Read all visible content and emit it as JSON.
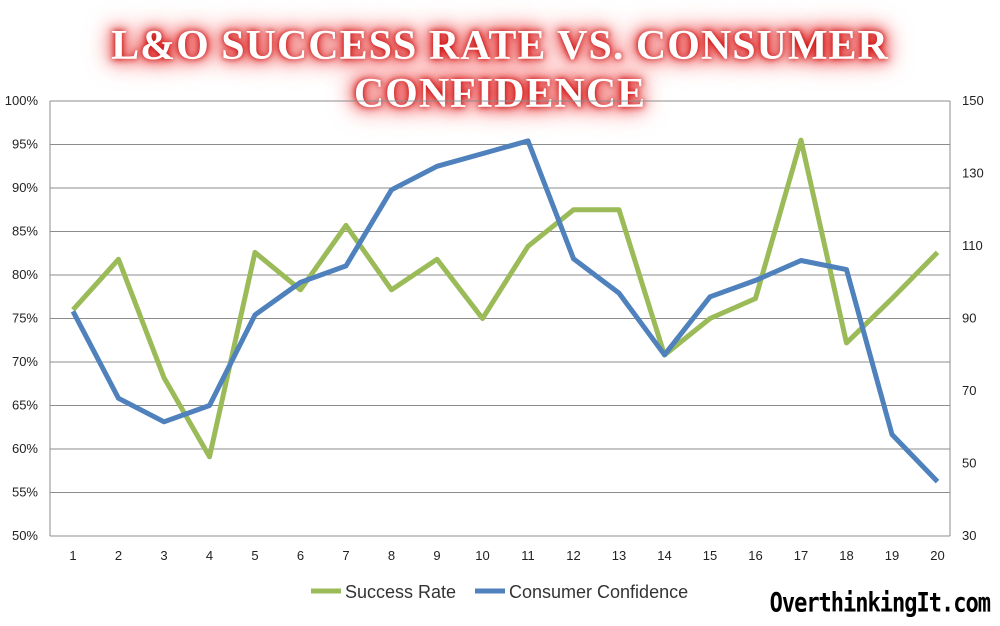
{
  "title": "L&O SUCCESS RATE VS. CONSUMER CONFIDENCE",
  "watermark": "OverthinkingIt.com",
  "colors": {
    "success_rate": "#9bbb59",
    "consumer_confidence": "#4f81bd",
    "grid": "#8c8c8c",
    "title_glow": "#e02020"
  },
  "chart_data": {
    "type": "line",
    "title": "L&O SUCCESS RATE VS. CONSUMER CONFIDENCE",
    "x": [
      1,
      2,
      3,
      4,
      5,
      6,
      7,
      8,
      9,
      10,
      11,
      12,
      13,
      14,
      15,
      16,
      17,
      18,
      19,
      20
    ],
    "x_tick_labels": [
      "1",
      "2",
      "3",
      "4",
      "5",
      "6",
      "7",
      "8",
      "9",
      "10",
      "11",
      "12",
      "13",
      "14",
      "15",
      "16",
      "17",
      "18",
      "19",
      "20"
    ],
    "y_left": {
      "ylim": [
        50,
        100
      ],
      "ticks": [
        50,
        55,
        60,
        65,
        70,
        75,
        80,
        85,
        90,
        95,
        100
      ],
      "tick_labels": [
        "50%",
        "55%",
        "60%",
        "65%",
        "70%",
        "75%",
        "80%",
        "85%",
        "90%",
        "95%",
        "100%"
      ]
    },
    "y_right": {
      "ylim": [
        30,
        150
      ],
      "ticks": [
        30,
        50,
        70,
        90,
        110,
        130,
        150
      ],
      "tick_labels": [
        "30",
        "50",
        "70",
        "90",
        "110",
        "130",
        "150"
      ]
    },
    "grid": true,
    "legend_position": "bottom",
    "series": [
      {
        "name": "Success Rate",
        "axis": "left",
        "values": [
          76,
          81.8,
          68.2,
          59.1,
          82.6,
          78.3,
          85.7,
          78.3,
          81.8,
          75,
          83.3,
          87.5,
          87.5,
          70.8,
          75,
          77.3,
          95.5,
          72.2,
          77.3,
          82.6
        ]
      },
      {
        "name": "Consumer Confidence",
        "axis": "right",
        "values": [
          92,
          68,
          61.5,
          66,
          91,
          100,
          104.5,
          125.5,
          132,
          135.5,
          139,
          106.5,
          97,
          80,
          96,
          100.5,
          106,
          103.5,
          58,
          45
        ]
      }
    ]
  }
}
